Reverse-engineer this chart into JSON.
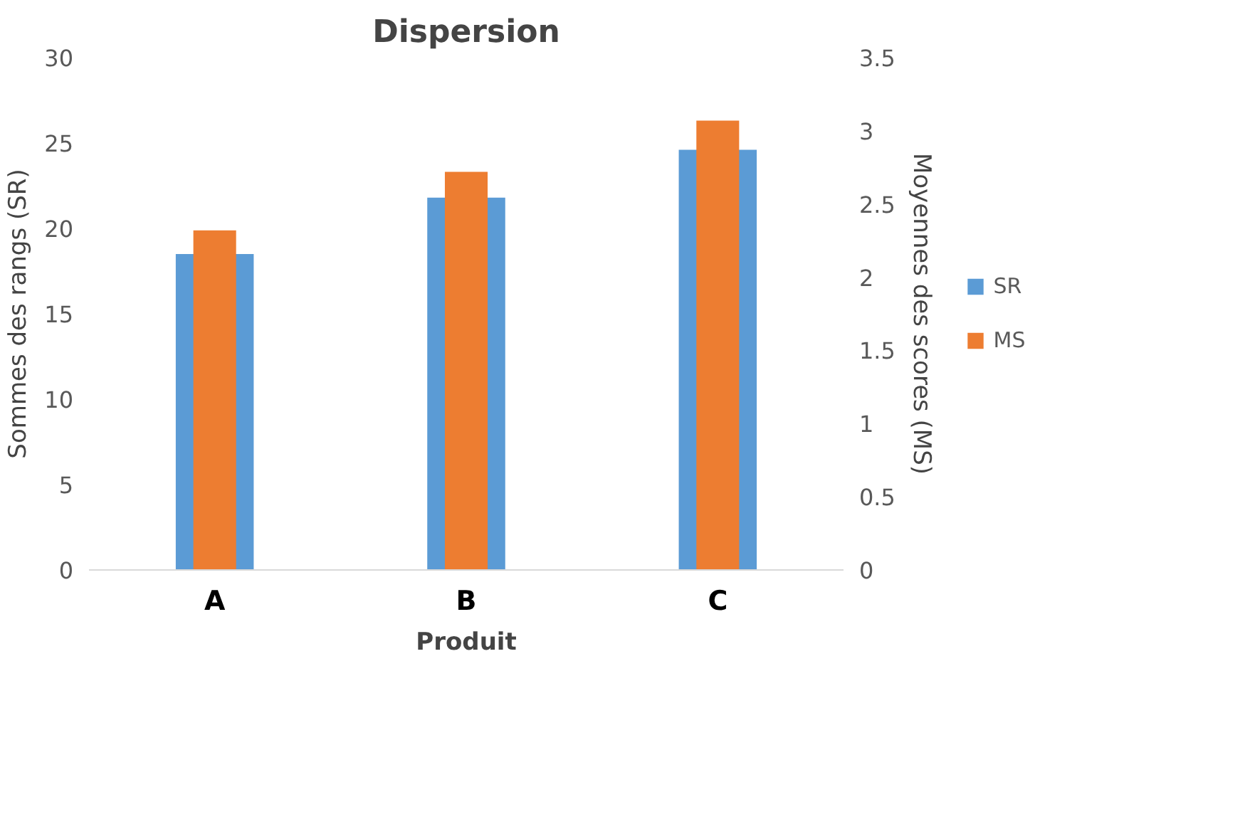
{
  "chart_data": {
    "type": "bar",
    "title": "Dispersion",
    "xlabel": "Produit",
    "ylabel": "Sommes des rangs (SR)",
    "y2label": "Moyennes des scores (MS)",
    "categories": [
      "A",
      "B",
      "C"
    ],
    "series": [
      {
        "name": "SR",
        "color": "#5b9bd5",
        "values": [
          18.5,
          21.8,
          24.6
        ]
      },
      {
        "name": "MS",
        "color": "#ed7d31",
        "axis": "y2",
        "values": [
          2.32,
          2.72,
          3.07
        ]
      }
    ],
    "ylim": [
      0,
      30
    ],
    "yticks": [
      0,
      5,
      10,
      15,
      20,
      25,
      30
    ],
    "y2lim": [
      0,
      3.5
    ],
    "y2ticks": [
      0,
      {
        "value": 0.5,
        "label": "0.5"
      },
      1,
      {
        "value": 1.5,
        "label": "1.5"
      },
      2,
      {
        "value": 2.5,
        "label": "2.5"
      },
      3,
      {
        "value": 3.5,
        "label": "3.5"
      }
    ],
    "grid": false,
    "legend": "right"
  }
}
